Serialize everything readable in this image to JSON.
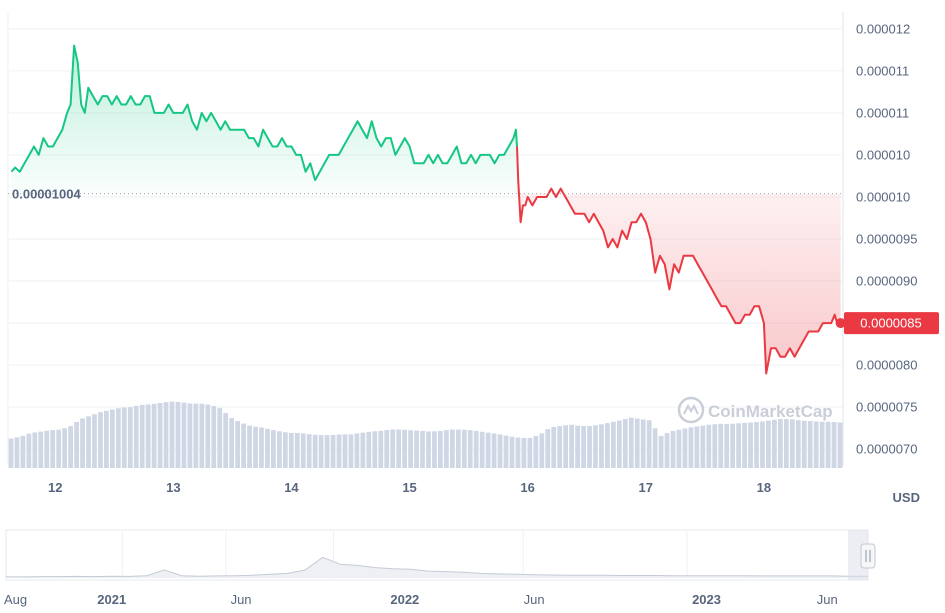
{
  "chart_data": {
    "type": "line",
    "title": "",
    "baseline_label": "0.00001004",
    "baseline_value": 1.004e-05,
    "current_label": "0.0000085",
    "current_value": 8.5e-06,
    "currency_label": "USD",
    "watermark": "CoinMarketCap",
    "ylim": [
      6.8e-06,
      1.22e-05
    ],
    "y_tick_values": [
      1.2e-05,
      1.15e-05,
      1.1e-05,
      1.05e-05,
      1e-05,
      9.5e-06,
      9e-06,
      8.5e-06,
      8e-06,
      7.5e-06,
      7e-06
    ],
    "y_tick_labels": [
      "0.000012",
      "0.000011",
      "0.000011",
      "0.000010",
      "0.000010",
      "0.0000095",
      "0.0000090",
      "0.0000085",
      "0.0000080",
      "0.0000075",
      "0.0000070"
    ],
    "x_range": [
      11.6,
      18.67
    ],
    "x_ticks": [
      12,
      13,
      14,
      15,
      16,
      17,
      18
    ],
    "x_tick_labels": [
      "12",
      "13",
      "14",
      "15",
      "16",
      "17",
      "18"
    ],
    "series": [
      {
        "values_x": [
          11.63,
          11.66,
          11.7,
          11.74,
          11.78,
          11.82,
          11.86,
          11.9,
          11.94,
          11.98,
          12.02,
          12.06,
          12.1,
          12.13,
          12.16,
          12.19,
          12.22,
          12.25,
          12.28,
          12.32,
          12.36,
          12.4,
          12.44,
          12.48,
          12.52,
          12.56,
          12.6,
          12.64,
          12.68,
          12.72,
          12.76,
          12.8,
          12.84,
          12.88,
          12.92,
          12.96,
          13.0,
          13.04,
          13.08,
          13.12,
          13.16,
          13.2,
          13.24,
          13.28,
          13.32,
          13.36,
          13.4,
          13.44,
          13.48,
          13.52,
          13.56,
          13.6,
          13.64,
          13.68,
          13.72,
          13.76,
          13.8,
          13.84,
          13.88,
          13.92,
          13.96,
          14.0,
          14.04,
          14.08,
          14.12,
          14.16,
          14.2,
          14.24,
          14.28,
          14.32,
          14.36,
          14.4,
          14.44,
          14.48,
          14.52,
          14.56,
          14.6,
          14.64,
          14.68,
          14.72,
          14.76,
          14.8,
          14.84,
          14.88,
          14.92,
          14.96,
          15.0,
          15.04,
          15.08,
          15.12,
          15.16,
          15.2,
          15.24,
          15.28,
          15.32,
          15.36,
          15.4,
          15.44,
          15.48,
          15.52,
          15.56,
          15.6,
          15.64,
          15.68,
          15.72,
          15.76,
          15.8,
          15.84,
          15.88,
          15.9,
          15.91
        ],
        "values_y": [
          1.03e-05,
          1.035e-05,
          1.03e-05,
          1.04e-05,
          1.05e-05,
          1.06e-05,
          1.05e-05,
          1.07e-05,
          1.06e-05,
          1.06e-05,
          1.07e-05,
          1.08e-05,
          1.1e-05,
          1.11e-05,
          1.18e-05,
          1.16e-05,
          1.11e-05,
          1.1e-05,
          1.13e-05,
          1.12e-05,
          1.11e-05,
          1.12e-05,
          1.12e-05,
          1.11e-05,
          1.12e-05,
          1.11e-05,
          1.11e-05,
          1.12e-05,
          1.11e-05,
          1.11e-05,
          1.12e-05,
          1.12e-05,
          1.1e-05,
          1.1e-05,
          1.1e-05,
          1.11e-05,
          1.1e-05,
          1.1e-05,
          1.1e-05,
          1.11e-05,
          1.09e-05,
          1.08e-05,
          1.1e-05,
          1.09e-05,
          1.1e-05,
          1.09e-05,
          1.08e-05,
          1.09e-05,
          1.08e-05,
          1.08e-05,
          1.08e-05,
          1.08e-05,
          1.07e-05,
          1.07e-05,
          1.06e-05,
          1.08e-05,
          1.07e-05,
          1.06e-05,
          1.06e-05,
          1.07e-05,
          1.06e-05,
          1.06e-05,
          1.05e-05,
          1.05e-05,
          1.03e-05,
          1.04e-05,
          1.02e-05,
          1.03e-05,
          1.04e-05,
          1.05e-05,
          1.05e-05,
          1.05e-05,
          1.06e-05,
          1.07e-05,
          1.08e-05,
          1.09e-05,
          1.08e-05,
          1.07e-05,
          1.09e-05,
          1.07e-05,
          1.06e-05,
          1.07e-05,
          1.07e-05,
          1.05e-05,
          1.06e-05,
          1.07e-05,
          1.06e-05,
          1.04e-05,
          1.04e-05,
          1.04e-05,
          1.05e-05,
          1.04e-05,
          1.05e-05,
          1.04e-05,
          1.04e-05,
          1.05e-05,
          1.06e-05,
          1.04e-05,
          1.04e-05,
          1.05e-05,
          1.04e-05,
          1.05e-05,
          1.05e-05,
          1.05e-05,
          1.04e-05,
          1.05e-05,
          1.05e-05,
          1.06e-05,
          1.07e-05,
          1.08e-05,
          1.06e-05
        ]
      },
      {
        "values_x": [
          15.91,
          15.92,
          15.94,
          15.96,
          15.98,
          16.0,
          16.04,
          16.08,
          16.12,
          16.16,
          16.2,
          16.24,
          16.28,
          16.32,
          16.36,
          16.4,
          16.44,
          16.48,
          16.52,
          16.56,
          16.6,
          16.64,
          16.68,
          16.72,
          16.76,
          16.8,
          16.84,
          16.88,
          16.92,
          16.96,
          17.0,
          17.04,
          17.08,
          17.12,
          17.16,
          17.2,
          17.24,
          17.28,
          17.32,
          17.36,
          17.4,
          17.44,
          17.48,
          17.52,
          17.56,
          17.6,
          17.64,
          17.68,
          17.72,
          17.76,
          17.8,
          17.84,
          17.88,
          17.92,
          17.96,
          17.98,
          18.0,
          18.02,
          18.06,
          18.1,
          18.14,
          18.18,
          18.22,
          18.26,
          18.3,
          18.34,
          18.38,
          18.42,
          18.46,
          18.5,
          18.54,
          18.57,
          18.6,
          18.62,
          18.65
        ],
        "values_y": [
          1.06e-05,
          1.02e-05,
          9.7e-06,
          9.9e-06,
          9.9e-06,
          1e-05,
          9.9e-06,
          1e-05,
          1e-05,
          1e-05,
          1.01e-05,
          1e-05,
          1.01e-05,
          1e-05,
          9.9e-06,
          9.8e-06,
          9.8e-06,
          9.8e-06,
          9.7e-06,
          9.8e-06,
          9.7e-06,
          9.6e-06,
          9.4e-06,
          9.5e-06,
          9.4e-06,
          9.6e-06,
          9.5e-06,
          9.7e-06,
          9.7e-06,
          9.8e-06,
          9.7e-06,
          9.5e-06,
          9.1e-06,
          9.3e-06,
          9.2e-06,
          8.9e-06,
          9.2e-06,
          9.1e-06,
          9.3e-06,
          9.3e-06,
          9.3e-06,
          9.2e-06,
          9.1e-06,
          9e-06,
          8.9e-06,
          8.8e-06,
          8.7e-06,
          8.7e-06,
          8.6e-06,
          8.5e-06,
          8.5e-06,
          8.6e-06,
          8.6e-06,
          8.7e-06,
          8.7e-06,
          8.6e-06,
          8.5e-06,
          7.9e-06,
          8.2e-06,
          8.2e-06,
          8.1e-06,
          8.1e-06,
          8.2e-06,
          8.1e-06,
          8.2e-06,
          8.3e-06,
          8.4e-06,
          8.4e-06,
          8.4e-06,
          8.5e-06,
          8.5e-06,
          8.5e-06,
          8.6e-06,
          8.5e-06,
          8.5e-06
        ]
      }
    ],
    "volume_profile": [
      0.42,
      0.45,
      0.5,
      0.52,
      0.54,
      0.55,
      0.6,
      0.7,
      0.75,
      0.8,
      0.83,
      0.86,
      0.87,
      0.9,
      0.91,
      0.93,
      0.95,
      0.94,
      0.92,
      0.92,
      0.9,
      0.85,
      0.72,
      0.65,
      0.6,
      0.58,
      0.55,
      0.52,
      0.5,
      0.5,
      0.48,
      0.47,
      0.47,
      0.48,
      0.48,
      0.5,
      0.52,
      0.53,
      0.55,
      0.55,
      0.54,
      0.53,
      0.52,
      0.53,
      0.55,
      0.55,
      0.54,
      0.52,
      0.5,
      0.48,
      0.45,
      0.43,
      0.43,
      0.48,
      0.58,
      0.6,
      0.62,
      0.6,
      0.6,
      0.62,
      0.65,
      0.68,
      0.72,
      0.7,
      0.68,
      0.45,
      0.52,
      0.55,
      0.58,
      0.6,
      0.62,
      0.63,
      0.63,
      0.64,
      0.65,
      0.66,
      0.68,
      0.7,
      0.7,
      0.68,
      0.67,
      0.66,
      0.66,
      0.65
    ],
    "navigator": {
      "labels": [
        "Aug",
        "2021",
        "Jun",
        "2022",
        "Jun",
        "2023",
        "Jun"
      ],
      "label_bold": [
        false,
        true,
        false,
        true,
        false,
        true,
        false
      ],
      "label_positions": [
        0.0,
        0.125,
        0.275,
        0.465,
        0.615,
        0.815,
        0.955
      ],
      "series_y": [
        0.05,
        0.05,
        0.06,
        0.06,
        0.07,
        0.06,
        0.08,
        0.07,
        0.1,
        0.35,
        0.1,
        0.08,
        0.09,
        0.1,
        0.12,
        0.16,
        0.2,
        0.35,
        0.9,
        0.6,
        0.55,
        0.45,
        0.4,
        0.38,
        0.3,
        0.28,
        0.25,
        0.2,
        0.18,
        0.16,
        0.14,
        0.13,
        0.12,
        0.12,
        0.12,
        0.11,
        0.11,
        0.11,
        0.1,
        0.1,
        0.1,
        0.1,
        0.1,
        0.09,
        0.09,
        0.09,
        0.09,
        0.09,
        0.08,
        0.08
      ]
    },
    "colors": {
      "up": "#16c784",
      "down": "#ea3943",
      "volume": "#cfd6e4",
      "grid": "#eff2f5",
      "text": "#58667e",
      "baseline_dots": "#a1a7bb",
      "nav_line": "#c5cbd6",
      "watermark": "#c9ced8"
    },
    "grid": true
  }
}
